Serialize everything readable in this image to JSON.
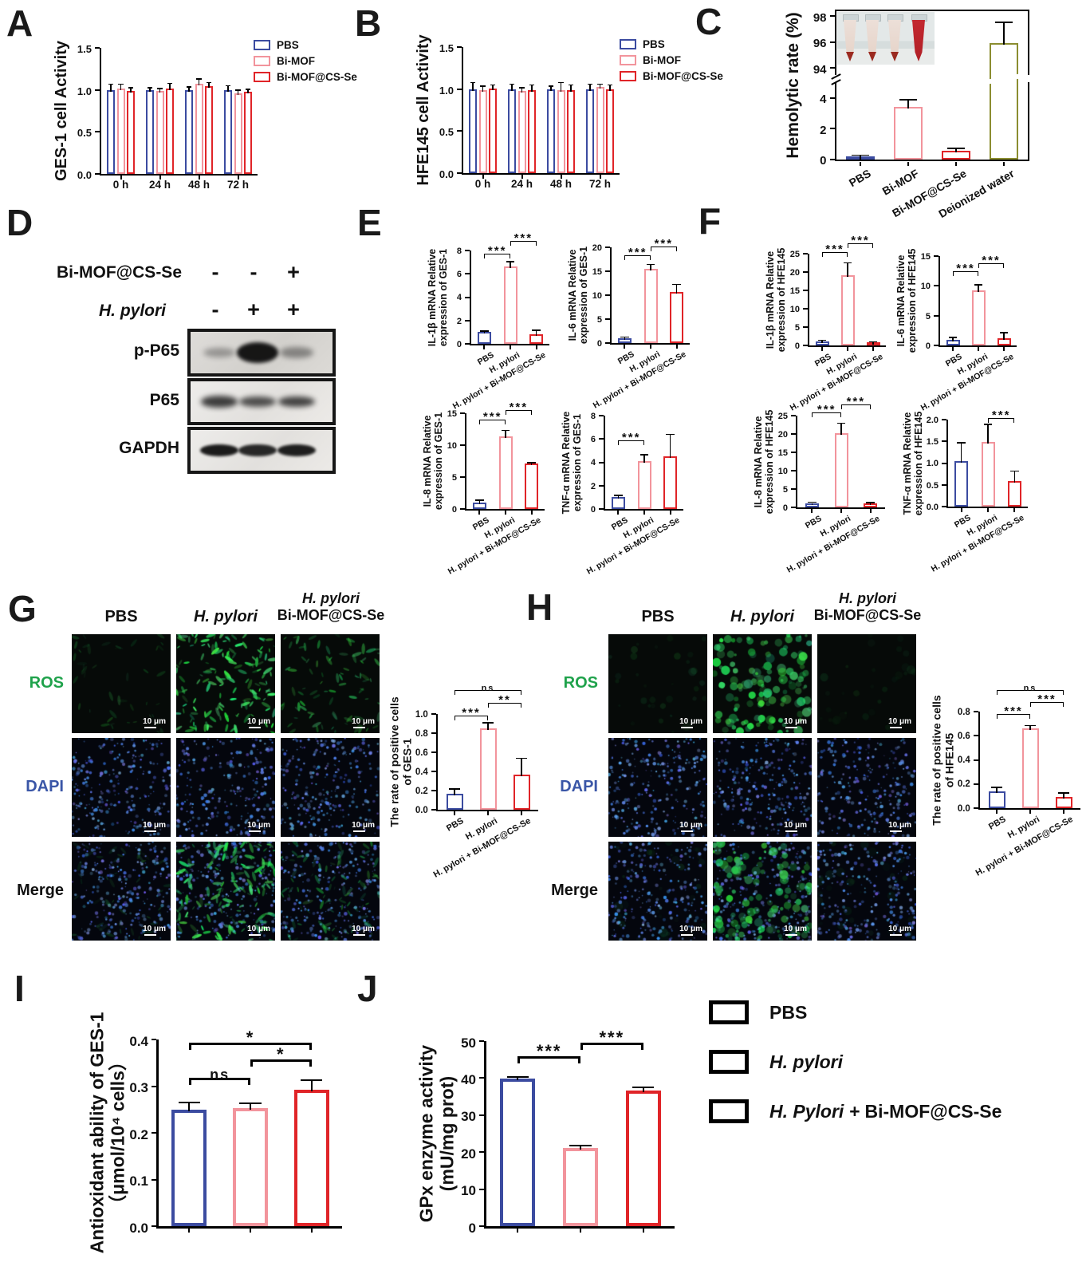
{
  "panel_labels": {
    "A": "A",
    "B": "B",
    "C": "C",
    "D": "D",
    "E": "E",
    "F": "F",
    "G": "G",
    "H": "H",
    "I": "I",
    "J": "J"
  },
  "colors": {
    "pbs_blue": "#3B4BA0",
    "pink": "#F2949C",
    "red": "#E02428",
    "olive": "#8B8D30",
    "ros_green": "#1FA24B",
    "dapi_blue": "#3A56A7"
  },
  "ab_legend": {
    "items": [
      {
        "label": "PBS"
      },
      {
        "label": "Bi-MOF"
      },
      {
        "label": "Bi-MOF@CS-Se"
      }
    ]
  },
  "main_legend": {
    "items": [
      {
        "label_italic": "",
        "label_rest": "PBS"
      },
      {
        "label_italic": "H. pylori",
        "label_rest": ""
      },
      {
        "label_italic": "H. Pylori + ",
        "label_rest": "Bi-MOF@CS-Se"
      }
    ]
  },
  "western_blot": {
    "treatment_label": "Bi-MOF@CS-Se",
    "pathogen_label": "H. pylori",
    "treatment_signs": [
      "-",
      "-",
      "+"
    ],
    "pathogen_signs": [
      "-",
      "+",
      "+"
    ],
    "rows": [
      {
        "label": "p-P65",
        "bands": [
          0.22,
          1.0,
          0.32
        ]
      },
      {
        "label": "P65",
        "bands": [
          0.78,
          0.68,
          0.74
        ]
      },
      {
        "label": "GAPDH",
        "bands": [
          0.97,
          0.9,
          0.95
        ]
      }
    ]
  },
  "microscopy": {
    "G": {
      "col1": "PBS",
      "col2": "H. pylori",
      "col3_line1": "H. pylori",
      "col3_line2": "Bi-MOF@CS-Se",
      "row_ros": "ROS",
      "row_dapi": "DAPI",
      "row_merge": "Merge",
      "scale": "10 μm",
      "ros_levels": [
        0.22,
        1.0,
        0.5
      ],
      "cell_style": "spindle"
    },
    "H": {
      "col1": "PBS",
      "col2": "H. pylori",
      "col3_line1": "H. pylori",
      "col3_line2": "Bi-MOF@CS-Se",
      "row_ros": "ROS",
      "row_dapi": "DAPI",
      "row_merge": "Merge",
      "scale": "10 μm",
      "ros_levels": [
        0.12,
        0.85,
        0.1
      ],
      "cell_style": "patch"
    }
  },
  "chart_data": [
    {
      "id": "A",
      "type": "bar",
      "grouped": true,
      "ylabel": [
        "GES-1 cell Activity"
      ],
      "yticks": [
        "0.0",
        "0.5",
        "1.0",
        "1.5"
      ],
      "ymax": 1.5,
      "categories": [
        "0 h",
        "24 h",
        "48 h",
        "72 h"
      ],
      "series": [
        {
          "name": "PBS",
          "color": "pbs_blue",
          "values": [
            1.0,
            1.0,
            1.0,
            1.0
          ],
          "errors": [
            0.06,
            0.02,
            0.03,
            0.04
          ]
        },
        {
          "name": "Bi-MOF",
          "color": "pink",
          "values": [
            1.02,
            0.99,
            1.07,
            0.96
          ],
          "errors": [
            0.04,
            0.02,
            0.05,
            0.03
          ]
        },
        {
          "name": "Bi-MOF@CS-Se",
          "color": "red",
          "values": [
            0.99,
            1.02,
            1.04,
            0.98
          ],
          "errors": [
            0.03,
            0.05,
            0.04,
            0.02
          ]
        }
      ]
    },
    {
      "id": "B",
      "type": "bar",
      "grouped": true,
      "ylabel": [
        "HFE145 cell Activity"
      ],
      "yticks": [
        "0.0",
        "0.5",
        "1.0",
        "1.5"
      ],
      "ymax": 1.5,
      "categories": [
        "0 h",
        "24 h",
        "48 h",
        "72 h"
      ],
      "series": [
        {
          "name": "PBS",
          "color": "pbs_blue",
          "values": [
            1.0,
            1.0,
            1.0,
            1.0
          ],
          "errors": [
            0.07,
            0.05,
            0.03,
            0.05
          ]
        },
        {
          "name": "Bi-MOF",
          "color": "pink",
          "values": [
            0.99,
            0.98,
            0.99,
            1.03
          ],
          "errors": [
            0.04,
            0.03,
            0.08,
            0.02
          ]
        },
        {
          "name": "Bi-MOF@CS-Se",
          "color": "red",
          "values": [
            1.01,
            0.99,
            0.99,
            1.0
          ],
          "errors": [
            0.03,
            0.05,
            0.05,
            0.04
          ]
        }
      ]
    },
    {
      "id": "C",
      "type": "bar",
      "boxed": true,
      "rotate_labels": true,
      "ylabel": [
        "Hemolytic rate (%)"
      ],
      "broken_axis": {
        "lower_ticks": [
          "0",
          "2",
          "4"
        ],
        "upper_ticks": [
          "94",
          "96",
          "98"
        ],
        "lower_max": 5,
        "upper_min": 93.4,
        "upper_max": 98.4
      },
      "categories": [
        "PBS",
        "Bi-MOF",
        "Bi-MOF@CS-Se",
        "Deionized water"
      ],
      "values": [
        0.1,
        3.4,
        0.55,
        95.9
      ],
      "errors": [
        0.15,
        0.45,
        0.12,
        1.6
      ],
      "bar_colors": [
        "pbs_blue",
        "pink",
        "red",
        "olive"
      ]
    },
    {
      "id": "E1",
      "type": "bar",
      "rotate_labels": true,
      "ylabel": [
        "IL-1β mRNA Relative",
        "expression of GES-1"
      ],
      "yticks": [
        "0",
        "2",
        "4",
        "6",
        "8"
      ],
      "ymax": 8,
      "categories": [
        "PBS",
        "H. pylori",
        "H. pylori + Bi-MOF@CS-Se"
      ],
      "values": [
        1.0,
        6.65,
        0.8
      ],
      "errors": [
        0.06,
        0.35,
        0.3
      ],
      "bar_colors": [
        "pbs_blue",
        "pink",
        "red"
      ],
      "sig": [
        {
          "a": 0,
          "b": 1,
          "label": "***",
          "y": 7.3
        },
        {
          "a": 1,
          "b": 2,
          "label": "***",
          "y": 8.4
        }
      ]
    },
    {
      "id": "E2",
      "type": "bar",
      "rotate_labels": true,
      "ylabel": [
        "IL-6 mRNA Relative",
        "expression of GES-1"
      ],
      "yticks": [
        "0",
        "5",
        "10",
        "15",
        "20"
      ],
      "ymax": 20,
      "categories": [
        "PBS",
        "H. pylori",
        "H. pylori + Bi-MOF@CS-Se"
      ],
      "values": [
        0.95,
        15.5,
        10.7
      ],
      "errors": [
        0.15,
        0.8,
        1.4
      ],
      "bar_colors": [
        "pbs_blue",
        "pink",
        "red"
      ],
      "sig": [
        {
          "a": 0,
          "b": 1,
          "label": "***",
          "y": 17.4
        },
        {
          "a": 1,
          "b": 2,
          "label": "***",
          "y": 19.2
        }
      ]
    },
    {
      "id": "E3",
      "type": "bar",
      "rotate_labels": true,
      "ylabel": [
        "IL-8 mRNA Relative",
        "expression of GES-1"
      ],
      "yticks": [
        "0",
        "5",
        "10",
        "15"
      ],
      "ymax": 15,
      "categories": [
        "PBS",
        "H. pylori",
        "H. pylori + Bi-MOF@CS-Se"
      ],
      "values": [
        1.0,
        11.4,
        7.1
      ],
      "errors": [
        0.25,
        0.8,
        0.05
      ],
      "bar_colors": [
        "pbs_blue",
        "pink",
        "red"
      ],
      "sig": [
        {
          "a": 0,
          "b": 1,
          "label": "***",
          "y": 13.3
        },
        {
          "a": 1,
          "b": 2,
          "label": "***",
          "y": 14.7
        }
      ]
    },
    {
      "id": "E4",
      "type": "bar",
      "rotate_labels": true,
      "ylabel": [
        "TNF-α mRNA Relative",
        "expression of GES-1"
      ],
      "yticks": [
        "0",
        "2",
        "4",
        "6",
        "8"
      ],
      "ymax": 8,
      "categories": [
        "PBS",
        "H. pylori",
        "H. pylori + Bi-MOF@CS-Se"
      ],
      "values": [
        1.0,
        4.1,
        4.5
      ],
      "errors": [
        0.12,
        0.5,
        1.85
      ],
      "bar_colors": [
        "pbs_blue",
        "pink",
        "red"
      ],
      "sig": [
        {
          "a": 0,
          "b": 1,
          "label": "***",
          "y": 5.5
        }
      ]
    },
    {
      "id": "F1",
      "type": "bar",
      "rotate_labels": true,
      "ylabel": [
        "IL-1β mRNA Relative",
        "expression of HFE145"
      ],
      "yticks": [
        "0",
        "5",
        "10",
        "15",
        "20",
        "25"
      ],
      "ymax": 25,
      "categories": [
        "PBS",
        "H. pylori",
        "H. pylori + Bi-MOF@CS-Se"
      ],
      "values": [
        1.0,
        19.2,
        0.7
      ],
      "errors": [
        0.25,
        3.1,
        0.15
      ],
      "bar_colors": [
        "pbs_blue",
        "pink",
        "red"
      ],
      "sig": [
        {
          "a": 0,
          "b": 1,
          "label": "***",
          "y": 24.2
        },
        {
          "a": 1,
          "b": 2,
          "label": "***",
          "y": 26.5
        }
      ]
    },
    {
      "id": "F2",
      "type": "bar",
      "rotate_labels": true,
      "ylabel": [
        "IL-6 mRNA Relative",
        "expression of HFE145"
      ],
      "yticks": [
        "0",
        "5",
        "10",
        "15"
      ],
      "ymax": 15,
      "categories": [
        "PBS",
        "H. pylori",
        "H. pylori + Bi-MOF@CS-Se"
      ],
      "values": [
        1.0,
        9.2,
        1.2
      ],
      "errors": [
        0.2,
        0.9,
        0.8
      ],
      "bar_colors": [
        "pbs_blue",
        "pink",
        "red"
      ],
      "sig": [
        {
          "a": 0,
          "b": 1,
          "label": "***",
          "y": 11.6
        },
        {
          "a": 1,
          "b": 2,
          "label": "***",
          "y": 13.0
        }
      ]
    },
    {
      "id": "F3",
      "type": "bar",
      "rotate_labels": true,
      "ylabel": [
        "IL-8 mRNA Relative",
        "expression of HFE145"
      ],
      "yticks": [
        "0",
        "5",
        "10",
        "15",
        "20",
        "25"
      ],
      "ymax": 25,
      "categories": [
        "PBS",
        "H. pylori",
        "H. pylori + Bi-MOF@CS-Se"
      ],
      "values": [
        1.0,
        20.3,
        1.0
      ],
      "errors": [
        0.2,
        2.5,
        0.15
      ],
      "bar_colors": [
        "pbs_blue",
        "pink",
        "red"
      ],
      "sig": [
        {
          "a": 0,
          "b": 1,
          "label": "***",
          "y": 24.6
        },
        {
          "a": 1,
          "b": 2,
          "label": "***",
          "y": 26.8
        }
      ]
    },
    {
      "id": "F4",
      "type": "bar",
      "rotate_labels": true,
      "ylabel": [
        "TNF-α mRNA  Relative",
        "expression of HFE145"
      ],
      "yticks": [
        "0.0",
        "0.5",
        "1.0",
        "1.5",
        "2.0"
      ],
      "ymax": 2.0,
      "categories": [
        "PBS",
        "H. pylori",
        "H. pylori + Bi-MOF@CS-Se"
      ],
      "values": [
        1.05,
        1.48,
        0.58
      ],
      "errors": [
        0.4,
        0.4,
        0.22
      ],
      "bar_colors": [
        "pbs_blue",
        "pink",
        "red"
      ],
      "sig": [
        {
          "a": 1,
          "b": 2,
          "label": "***",
          "y": 1.93
        }
      ]
    },
    {
      "id": "G",
      "type": "bar",
      "rotate_labels": true,
      "ylabel": [
        "The rate of positive cells",
        "of GES-1"
      ],
      "yticks": [
        "0.0",
        "0.2",
        "0.4",
        "0.6",
        "0.8",
        "1.0"
      ],
      "ymax": 1.0,
      "categories": [
        "PBS",
        "H. pylori",
        "H. pylori + Bi-MOF@CS-Se"
      ],
      "values": [
        0.17,
        0.85,
        0.37
      ],
      "errors": [
        0.04,
        0.05,
        0.16
      ],
      "bar_colors": [
        "pbs_blue",
        "pink",
        "red"
      ],
      "sig": [
        {
          "a": 0,
          "b": 1,
          "label": "***",
          "y": 0.93
        },
        {
          "a": 1,
          "b": 2,
          "label": "**",
          "y": 1.07
        },
        {
          "a": 0,
          "b": 2,
          "label": "ns",
          "y": 1.2
        }
      ]
    },
    {
      "id": "H",
      "type": "bar",
      "rotate_labels": true,
      "ylabel": [
        "The rate of positive cells",
        "of HFE145"
      ],
      "yticks": [
        "0.0",
        "0.2",
        "0.4",
        "0.6",
        "0.8"
      ],
      "ymax": 0.8,
      "categories": [
        "PBS",
        "H. pylori",
        "H. pylori + Bi-MOF@CS-Se"
      ],
      "values": [
        0.14,
        0.66,
        0.09
      ],
      "errors": [
        0.025,
        0.02,
        0.03
      ],
      "bar_colors": [
        "pbs_blue",
        "pink",
        "red"
      ],
      "sig": [
        {
          "a": 0,
          "b": 1,
          "label": "***",
          "y": 0.74
        },
        {
          "a": 1,
          "b": 2,
          "label": "***",
          "y": 0.84
        },
        {
          "a": 0,
          "b": 2,
          "label": "ns",
          "y": 0.94
        }
      ]
    },
    {
      "id": "I",
      "type": "bar",
      "ylabel": [
        "Antioxidant ability of GES-1",
        "（μmol/10⁴ cells）"
      ],
      "yticks": [
        "0.0",
        "0.1",
        "0.2",
        "0.3",
        "0.4"
      ],
      "ymax": 0.4,
      "categories": [
        "PBS",
        "H. pylori",
        "H. pylori + Bi-MOF@CS-Se"
      ],
      "hide_xticklabels": true,
      "values": [
        0.25,
        0.253,
        0.293
      ],
      "errors": [
        0.013,
        0.008,
        0.018
      ],
      "bar_colors": [
        "pbs_blue",
        "pink",
        "red"
      ],
      "sig": [
        {
          "a": 0,
          "b": 1,
          "label": "ns",
          "y": 0.303
        },
        {
          "a": 1,
          "b": 2,
          "label": "*",
          "y": 0.342
        },
        {
          "a": 0,
          "b": 2,
          "label": "*",
          "y": 0.378
        }
      ]
    },
    {
      "id": "J",
      "type": "bar",
      "ylabel": [
        "GPx enzyme activity",
        "(mU/mg prot)"
      ],
      "yticks": [
        "0",
        "10",
        "20",
        "30",
        "40",
        "50"
      ],
      "ymax": 50,
      "categories": [
        "PBS",
        "H. pylori",
        "H. pylori + Bi-MOF@CS-Se"
      ],
      "hide_xticklabels": true,
      "values": [
        39.8,
        21.2,
        36.7
      ],
      "errors": [
        0.3,
        0.4,
        0.5
      ],
      "bar_colors": [
        "pbs_blue",
        "pink",
        "red"
      ],
      "sig": [
        {
          "a": 0,
          "b": 1,
          "label": "***",
          "y": 44
        },
        {
          "a": 1,
          "b": 2,
          "label": "***",
          "y": 47.6
        }
      ]
    }
  ]
}
